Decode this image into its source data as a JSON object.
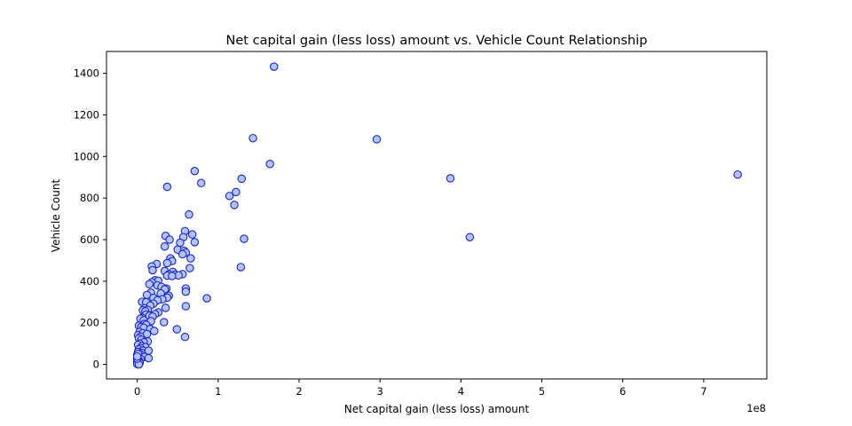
{
  "chart_data": {
    "type": "scatter",
    "title": "Net capital gain (less loss) amount vs. Vehicle Count Relationship",
    "xlabel": "Net capital gain (less loss) amount",
    "ylabel": "Vehicle Count",
    "x_offset_label": "1e8",
    "x_scale": 100000000,
    "xlim": [
      -0.38,
      7.78
    ],
    "ylim": [
      -70,
      1505
    ],
    "x_ticks": [
      0,
      1,
      2,
      3,
      4,
      5,
      6,
      7
    ],
    "y_ticks": [
      0,
      200,
      400,
      600,
      800,
      1000,
      1200,
      1400
    ],
    "grid": false,
    "legend": "none",
    "colors": {
      "marker_face": "#aec7f7",
      "marker_edge": "#1f1fd0"
    },
    "points": [
      [
        1.69,
        1432
      ],
      [
        1.43,
        1088
      ],
      [
        2.96,
        1083
      ],
      [
        1.64,
        964
      ],
      [
        0.71,
        930
      ],
      [
        3.87,
        895
      ],
      [
        7.42,
        913
      ],
      [
        1.29,
        893
      ],
      [
        0.79,
        872
      ],
      [
        0.37,
        854
      ],
      [
        1.14,
        810
      ],
      [
        1.22,
        829
      ],
      [
        1.2,
        767
      ],
      [
        0.64,
        721
      ],
      [
        0.59,
        641
      ],
      [
        0.68,
        625
      ],
      [
        0.35,
        618
      ],
      [
        1.32,
        604
      ],
      [
        4.11,
        612
      ],
      [
        0.4,
        600
      ],
      [
        0.57,
        612
      ],
      [
        0.71,
        588
      ],
      [
        0.53,
        585
      ],
      [
        0.34,
        567
      ],
      [
        0.5,
        552
      ],
      [
        0.58,
        547
      ],
      [
        0.6,
        538
      ],
      [
        0.56,
        530
      ],
      [
        0.66,
        510
      ],
      [
        0.41,
        510
      ],
      [
        0.43,
        497
      ],
      [
        0.37,
        487
      ],
      [
        0.24,
        483
      ],
      [
        0.18,
        471
      ],
      [
        0.19,
        453
      ],
      [
        1.28,
        468
      ],
      [
        0.65,
        463
      ],
      [
        0.34,
        449
      ],
      [
        0.44,
        445
      ],
      [
        0.47,
        432
      ],
      [
        0.39,
        433
      ],
      [
        0.56,
        434
      ],
      [
        0.51,
        428
      ],
      [
        0.37,
        427
      ],
      [
        0.43,
        425
      ],
      [
        0.22,
        405
      ],
      [
        0.26,
        402
      ],
      [
        0.18,
        395
      ],
      [
        0.15,
        386
      ],
      [
        0.25,
        380
      ],
      [
        0.3,
        373
      ],
      [
        0.36,
        365
      ],
      [
        0.34,
        361
      ],
      [
        0.6,
        365
      ],
      [
        0.6,
        350
      ],
      [
        0.17,
        345
      ],
      [
        0.29,
        341
      ],
      [
        0.12,
        334
      ],
      [
        0.39,
        330
      ],
      [
        0.37,
        321
      ],
      [
        0.86,
        318
      ],
      [
        0.2,
        320
      ],
      [
        0.31,
        313
      ],
      [
        0.25,
        308
      ],
      [
        0.06,
        301
      ],
      [
        0.11,
        299
      ],
      [
        0.2,
        292
      ],
      [
        0.16,
        283
      ],
      [
        0.6,
        280
      ],
      [
        0.35,
        272
      ],
      [
        0.09,
        270
      ],
      [
        0.13,
        262
      ],
      [
        0.07,
        260
      ],
      [
        0.1,
        255
      ],
      [
        0.26,
        250
      ],
      [
        0.22,
        242
      ],
      [
        0.11,
        240
      ],
      [
        0.15,
        234
      ],
      [
        0.19,
        230
      ],
      [
        0.06,
        224
      ],
      [
        0.04,
        220
      ],
      [
        0.08,
        212
      ],
      [
        0.17,
        208
      ],
      [
        0.33,
        203
      ],
      [
        0.09,
        195
      ],
      [
        0.11,
        190
      ],
      [
        0.02,
        186
      ],
      [
        0.05,
        180
      ],
      [
        0.08,
        176
      ],
      [
        0.16,
        170
      ],
      [
        0.49,
        169
      ],
      [
        0.21,
        161
      ],
      [
        0.03,
        156
      ],
      [
        0.07,
        150
      ],
      [
        0.12,
        146
      ],
      [
        0.01,
        140
      ],
      [
        0.04,
        133
      ],
      [
        0.59,
        132
      ],
      [
        0.02,
        125
      ],
      [
        0.05,
        118
      ],
      [
        0.13,
        110
      ],
      [
        0.08,
        106
      ],
      [
        0.03,
        100
      ],
      [
        0.01,
        94
      ],
      [
        0.06,
        88
      ],
      [
        0.1,
        83
      ],
      [
        0.04,
        78
      ],
      [
        0.02,
        72
      ],
      [
        0.07,
        66
      ],
      [
        0.14,
        66
      ],
      [
        0.01,
        60
      ],
      [
        0.05,
        56
      ],
      [
        0.03,
        50
      ],
      [
        0.0,
        46
      ],
      [
        0.02,
        40
      ],
      [
        0.09,
        36
      ],
      [
        0.01,
        32
      ],
      [
        0.14,
        30
      ],
      [
        0.04,
        26
      ],
      [
        0.0,
        22
      ],
      [
        0.02,
        18
      ],
      [
        0.01,
        14
      ],
      [
        0.0,
        10
      ],
      [
        0.03,
        8
      ],
      [
        0.01,
        5
      ],
      [
        0.0,
        2
      ],
      [
        0.02,
        0
      ],
      [
        0.0,
        28
      ],
      [
        0.01,
        50
      ],
      [
        0.0,
        38
      ]
    ]
  }
}
